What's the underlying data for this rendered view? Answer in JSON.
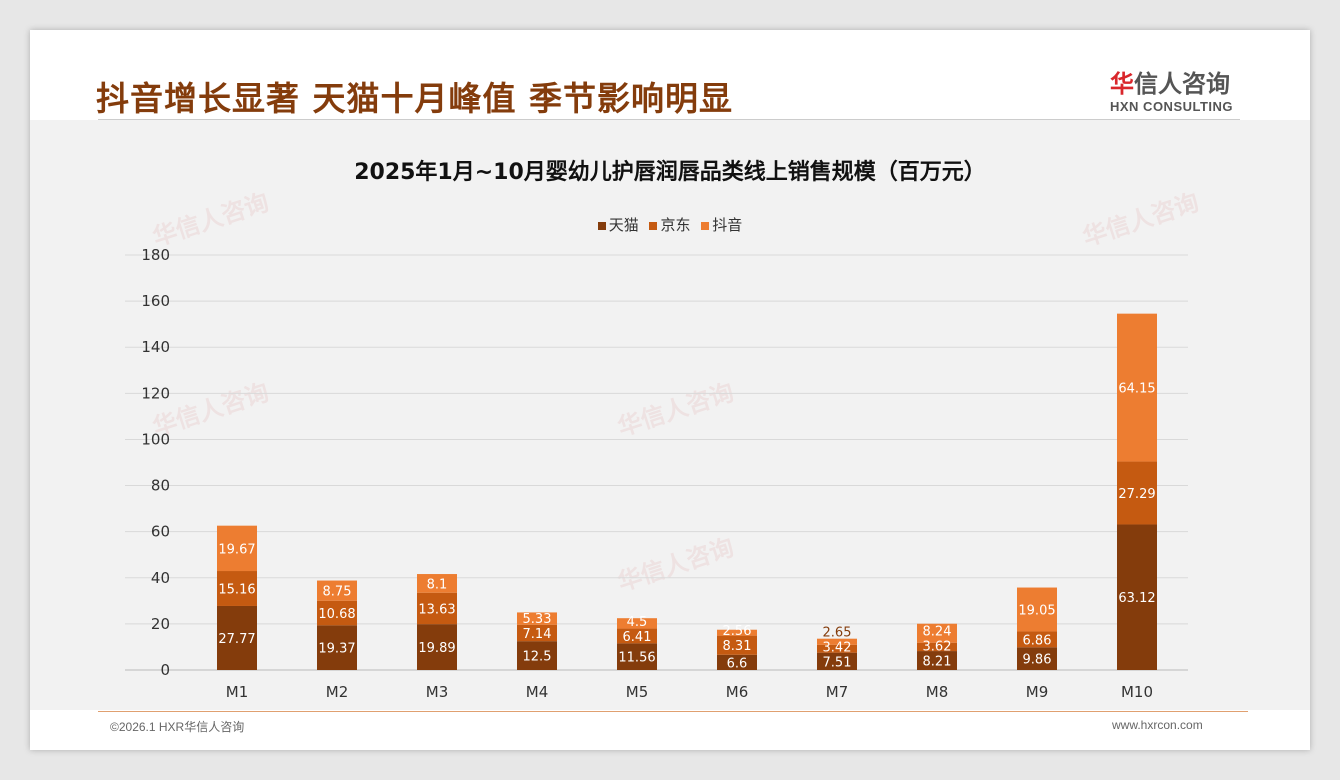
{
  "header": {
    "headline": "抖音增长显著 天猫十月峰值 季节影响明显",
    "logo_cn_red": "华",
    "logo_cn": "信人咨询",
    "logo_en": "HXN CONSULTING"
  },
  "footer": {
    "left": "©2026.1 HXR华信人咨询",
    "right": "www.hxrcon.com"
  },
  "colors": {
    "tmall": "#843C0C",
    "jd": "#C55A11",
    "douyin": "#ED7D31"
  },
  "chart_data": {
    "type": "bar",
    "stacked": true,
    "title": "2025年1月~10月婴幼儿护唇润唇品类线上销售规模（百万元）",
    "categories": [
      "M1",
      "M2",
      "M3",
      "M4",
      "M5",
      "M6",
      "M7",
      "M8",
      "M9",
      "M10"
    ],
    "series": [
      {
        "name": "天猫",
        "values": [
          27.77,
          19.37,
          19.89,
          12.5,
          11.56,
          6.6,
          7.51,
          8.21,
          9.86,
          63.12
        ]
      },
      {
        "name": "京东",
        "values": [
          15.16,
          10.68,
          13.63,
          7.14,
          6.41,
          8.31,
          3.42,
          3.62,
          6.86,
          27.29
        ]
      },
      {
        "name": "抖音",
        "values": [
          19.67,
          8.75,
          8.1,
          5.33,
          4.5,
          2.56,
          2.65,
          8.24,
          19.05,
          64.15
        ]
      }
    ],
    "ylim": [
      0,
      180
    ],
    "yticks": [
      0,
      20,
      40,
      60,
      80,
      100,
      120,
      140,
      160,
      180
    ],
    "legend": "top",
    "grid": true
  }
}
